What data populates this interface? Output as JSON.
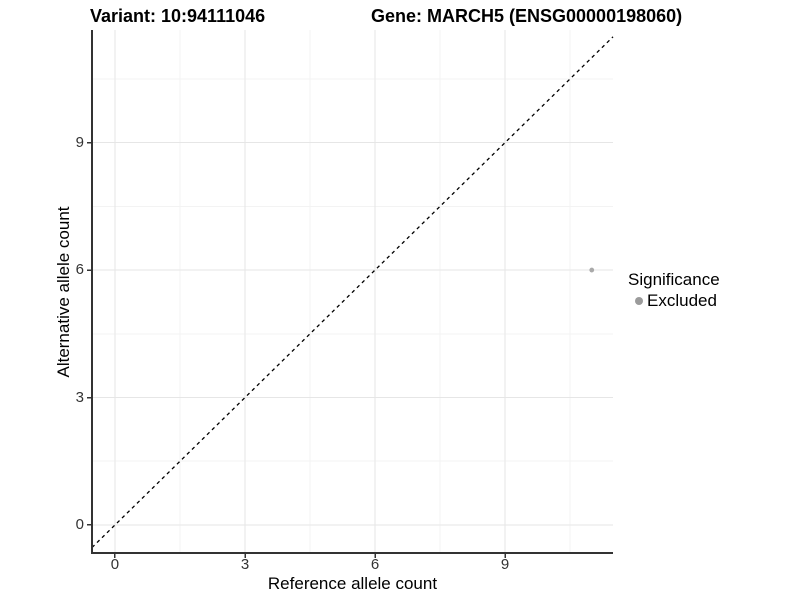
{
  "titles": {
    "variant": "Variant: 10:94111046",
    "gene": "Gene: MARCH5 (ENSG00000198060)"
  },
  "chart_data": {
    "type": "scatter",
    "xlabel": "Reference allele count",
    "ylabel": "Alternative allele count",
    "xlim": [
      -0.53,
      11.49
    ],
    "ylim": [
      -0.66,
      11.65
    ],
    "x_ticks": [
      0,
      3,
      6,
      9
    ],
    "y_ticks": [
      0,
      3,
      6,
      9
    ],
    "x_minor_ticks": [
      1.5,
      4.5,
      7.5,
      10.5
    ],
    "y_minor_ticks": [
      1.5,
      4.5,
      7.5,
      10.5
    ],
    "grid": true,
    "series": [
      {
        "name": "Excluded",
        "points": [
          {
            "x": 11,
            "y": 6
          }
        ]
      }
    ],
    "reference_line": {
      "type": "identity",
      "slope": 1,
      "intercept": 0,
      "style": "dashed"
    },
    "legend": {
      "title": "Significance",
      "position": "right",
      "entries": [
        {
          "label": "Excluded",
          "color": "#9b9b9b"
        }
      ]
    }
  },
  "colors": {
    "background": "#ffffff",
    "grid_major": "#e6e6e6",
    "grid_minor": "#f3f3f3",
    "axis_line": "#333333",
    "tick_mark": "#333333",
    "tick_text": "#333333",
    "title_text": "#000000",
    "point": "#a9a9a9",
    "legend_key": "#9b9b9b",
    "reference_line": "#000000"
  }
}
